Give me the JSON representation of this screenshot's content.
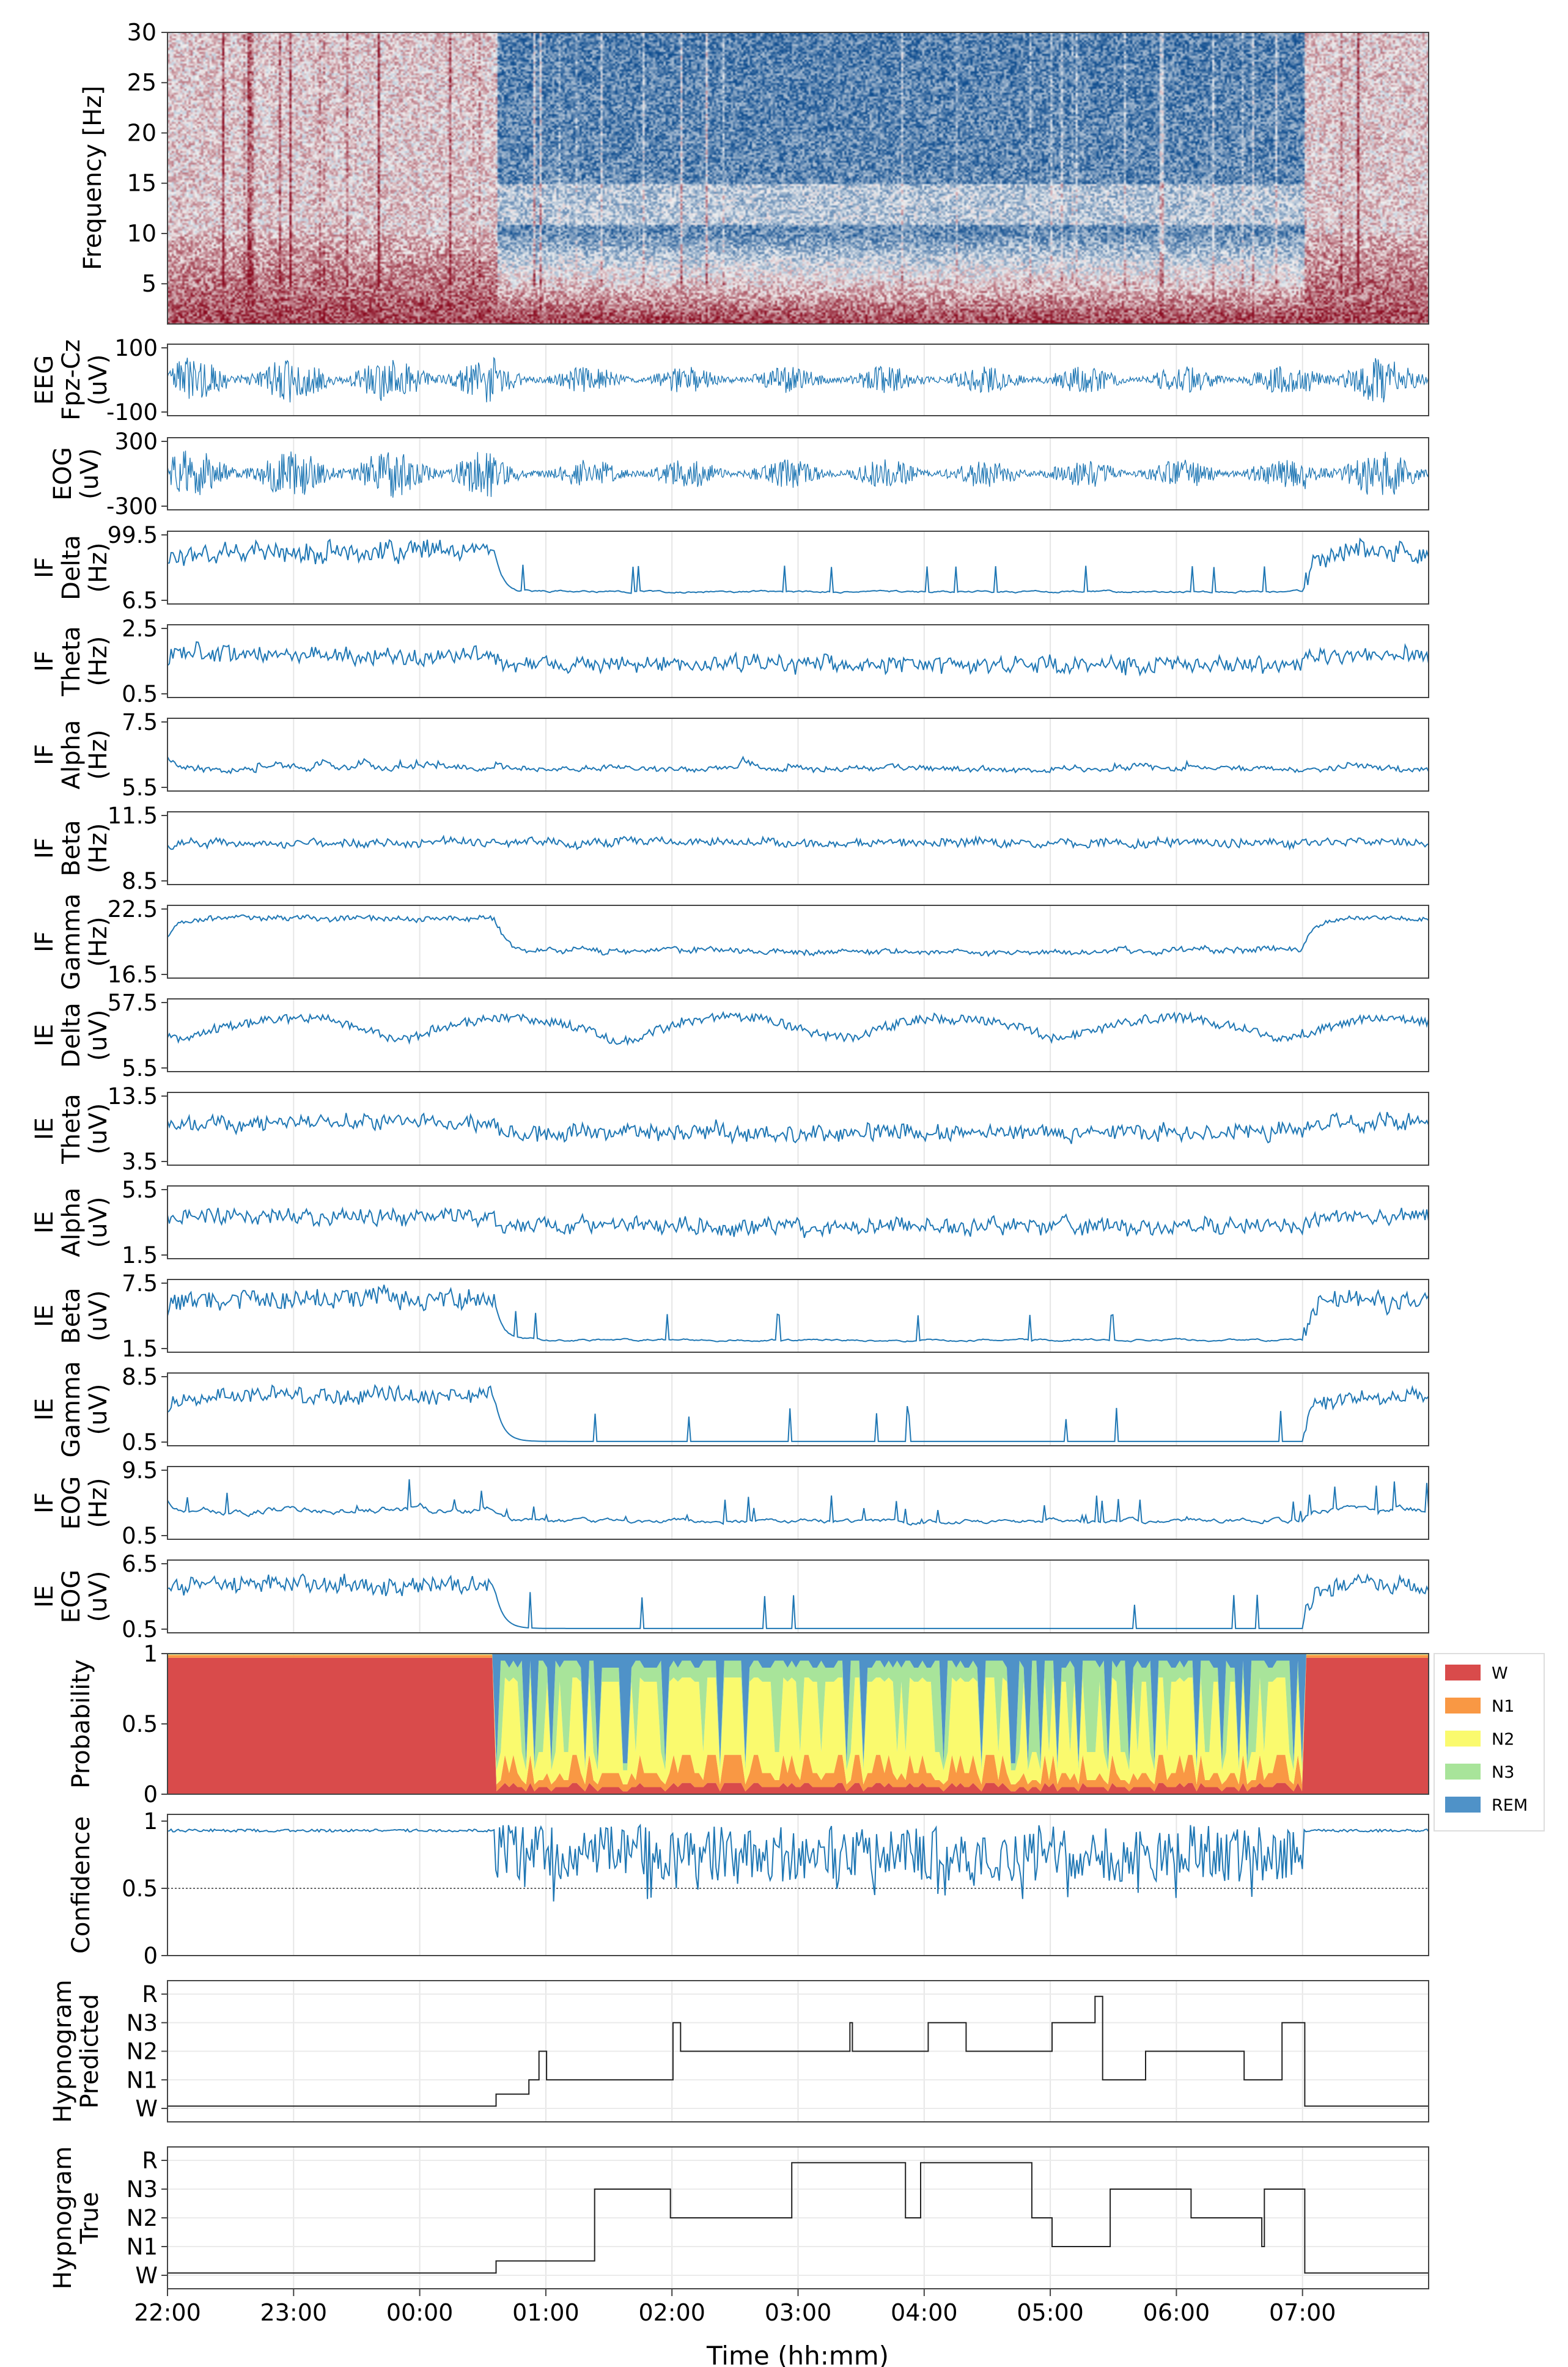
{
  "figure": {
    "xlabel": "Time (hh:mm)",
    "time_ticks": [
      "22:00",
      "23:00",
      "00:00",
      "01:00",
      "02:00",
      "03:00",
      "04:00",
      "05:00",
      "06:00",
      "07:00"
    ],
    "x_range_hours": [
      22,
      32
    ],
    "wake_to_sleep_hour": 24.6,
    "sleep_to_wake_hour": 31.0
  },
  "spectrogram": {
    "ylabel": "Frequency [Hz]",
    "yticks": [
      "30",
      "25",
      "20",
      "15",
      "10",
      "5"
    ],
    "ylim": [
      1,
      30
    ],
    "colormap_low": "#0f4d8f",
    "colormap_mid": "#f2f2f2",
    "colormap_high": "#8a0a1f"
  },
  "chart_data": [
    {
      "type": "line",
      "label_lines": [
        "EEG",
        "Fpz-Cz",
        "(uV)"
      ],
      "ticks": [
        "100",
        "-100"
      ],
      "ylim": [
        -220,
        220
      ],
      "kind": "signal",
      "amp": 0.85,
      "seed": 3,
      "color": "#1f77b4"
    },
    {
      "type": "line",
      "label_lines": [
        "EOG",
        "(uV)"
      ],
      "ticks": [
        "300",
        "-300"
      ],
      "ylim": [
        -500,
        500
      ],
      "kind": "signal",
      "amp": 0.9,
      "seed": 5,
      "color": "#1f77b4"
    },
    {
      "type": "line",
      "label_lines": [
        "IF",
        "Delta",
        "(Hz)"
      ],
      "ticks": [
        "99.5",
        "6.5"
      ],
      "ylim": [
        6.5,
        99.5
      ],
      "kind": "wake_high",
      "seed": 7,
      "color": "#1f77b4"
    },
    {
      "type": "line",
      "label_lines": [
        "IF",
        "Theta",
        "(Hz)"
      ],
      "ticks": [
        "2.5",
        "0.5"
      ],
      "ylim": [
        0.5,
        2.5
      ],
      "kind": "flat_noisy",
      "seed": 11,
      "color": "#1f77b4"
    },
    {
      "type": "line",
      "label_lines": [
        "IF",
        "Alpha",
        "(Hz)"
      ],
      "ticks": [
        "7.5",
        "5.5"
      ],
      "ylim": [
        5.5,
        7.5
      ],
      "kind": "low_bumps",
      "seed": 13,
      "color": "#1f77b4"
    },
    {
      "type": "line",
      "label_lines": [
        "IF",
        "Beta",
        "(Hz)"
      ],
      "ticks": [
        "11.5",
        "8.5"
      ],
      "ylim": [
        8.5,
        11.5
      ],
      "kind": "mid_flat",
      "seed": 17,
      "color": "#1f77b4"
    },
    {
      "type": "line",
      "label_lines": [
        "IF",
        "Gamma",
        "(Hz)"
      ],
      "ticks": [
        "22.5",
        "16.5"
      ],
      "ylim": [
        16.5,
        22.5
      ],
      "kind": "wake_high_smooth",
      "seed": 19,
      "color": "#1f77b4"
    },
    {
      "type": "line",
      "label_lines": [
        "IE",
        "Delta",
        "(uV)"
      ],
      "ticks": [
        "57.5",
        "5.5"
      ],
      "ylim": [
        5.5,
        57.5
      ],
      "kind": "delta_energy",
      "seed": 23,
      "color": "#1f77b4"
    },
    {
      "type": "line",
      "label_lines": [
        "IE",
        "Theta",
        "(uV)"
      ],
      "ticks": [
        "13.5",
        "3.5"
      ],
      "ylim": [
        3.5,
        13.5
      ],
      "kind": "flat_noisy",
      "seed": 29,
      "color": "#1f77b4"
    },
    {
      "type": "line",
      "label_lines": [
        "IE",
        "Alpha",
        "(uV)"
      ],
      "ticks": [
        "5.5",
        "1.5"
      ],
      "ylim": [
        1.5,
        5.5
      ],
      "kind": "flat_noisy",
      "seed": 31,
      "color": "#1f77b4"
    },
    {
      "type": "line",
      "label_lines": [
        "IE",
        "Beta",
        "(uV)"
      ],
      "ticks": [
        "7.5",
        "1.5"
      ],
      "ylim": [
        1.5,
        7.5
      ],
      "kind": "wake_high",
      "seed": 37,
      "color": "#1f77b4"
    },
    {
      "type": "line",
      "label_lines": [
        "IE",
        "Gamma",
        "(uV)"
      ],
      "ticks": [
        "8.5",
        "0.5"
      ],
      "ylim": [
        0.5,
        8.5
      ],
      "kind": "wake_high_spiky",
      "seed": 41,
      "color": "#1f77b4"
    },
    {
      "type": "line",
      "label_lines": [
        "IF",
        "EOG",
        "(Hz)"
      ],
      "ticks": [
        "9.5",
        "0.5"
      ],
      "ylim": [
        0.5,
        9.5
      ],
      "kind": "eog_if",
      "seed": 43,
      "color": "#1f77b4"
    },
    {
      "type": "line",
      "label_lines": [
        "IE",
        "EOG",
        "(uV)"
      ],
      "ticks": [
        "6.5",
        "0.5"
      ],
      "ylim": [
        0.5,
        6.5
      ],
      "kind": "wake_high_spiky",
      "seed": 47,
      "color": "#1f77b4"
    },
    {
      "type": "area",
      "label_lines": [
        "Probability"
      ],
      "ticks": [
        "1",
        "0.5",
        "0"
      ],
      "ylim": [
        0,
        1
      ],
      "legend": [
        {
          "name": "W",
          "color": "#d94b4b"
        },
        {
          "name": "N1",
          "color": "#f99844"
        },
        {
          "name": "N2",
          "color": "#fafa6e"
        },
        {
          "name": "N3",
          "color": "#a8e49a"
        },
        {
          "name": "REM",
          "color": "#4f92c8"
        }
      ],
      "legend_position": "right"
    },
    {
      "type": "line",
      "label_lines": [
        "Confidence"
      ],
      "ticks": [
        "1",
        "0.5",
        "0"
      ],
      "ylim": [
        0,
        1.05
      ],
      "threshold": 0.5,
      "kind": "confidence",
      "seed": 53,
      "color": "#1f77b4"
    },
    {
      "type": "line",
      "label_lines": [
        "Hypnogram",
        "Predicted"
      ],
      "ticks": [
        "R",
        "N3",
        "N2",
        "N1",
        "W"
      ],
      "kind": "hypnogram",
      "seed": 59,
      "color": "#222222"
    },
    {
      "type": "line",
      "label_lines": [
        "Hypnogram",
        "True"
      ],
      "ticks": [
        "R",
        "N3",
        "N2",
        "N1",
        "W"
      ],
      "kind": "hypnogram",
      "seed": 61,
      "color": "#222222"
    }
  ]
}
